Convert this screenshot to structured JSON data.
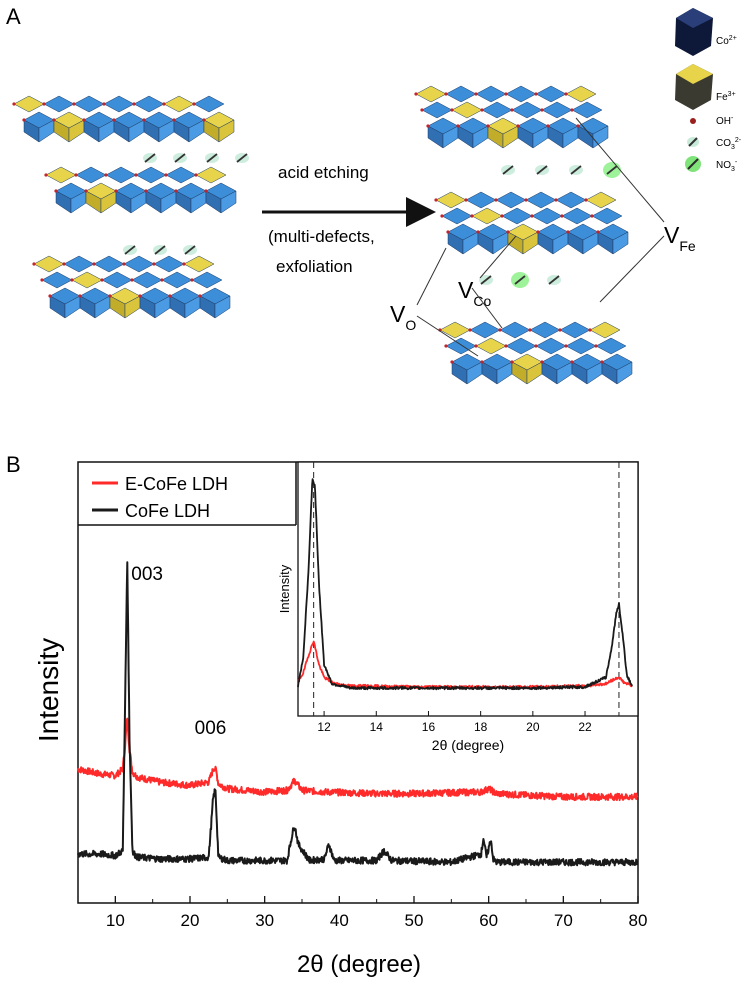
{
  "panels": {
    "a_label": "A",
    "b_label": "B"
  },
  "schematic": {
    "arrow_line1": "acid etching",
    "arrow_line2": "(multi-defects,",
    "arrow_line3": "exfoliation",
    "vacancy_o": {
      "main": "V",
      "sub": "O"
    },
    "vacancy_co": {
      "main": "V",
      "sub": "Co"
    },
    "vacancy_fe": {
      "main": "V",
      "sub": "Fe"
    },
    "legend": [
      {
        "symbol": "co-octahedron",
        "label": "Co",
        "sup": "2+",
        "color": "#101a3c"
      },
      {
        "symbol": "fe-octahedron",
        "label": "Fe",
        "sup": "3+",
        "color": "#3c3c32"
      },
      {
        "symbol": "hydroxyl-dot",
        "label": "OH",
        "sup": "-",
        "color": "#9a1f1f"
      },
      {
        "symbol": "carbonate-ion",
        "label": "CO",
        "sub": "3",
        "sup": "2-",
        "color": "#b7e2d4"
      },
      {
        "symbol": "nitrate-ion",
        "label": "NO",
        "sub": "3",
        "sup": "-",
        "color": "#7fe37a"
      }
    ],
    "colors": {
      "co_face": "#3d8ed8",
      "fe_face": "#e7d44a",
      "oxygen": "#c0262b",
      "edge": "#1c3a66"
    }
  },
  "chart_data": {
    "type": "line",
    "xlabel": "2θ (degree)",
    "ylabel": "Intensity",
    "xlim": [
      5,
      80
    ],
    "xticks": [
      10,
      20,
      30,
      40,
      50,
      60,
      70,
      80
    ],
    "y_axis_values_shown": false,
    "grid": false,
    "legend_position": "top-left",
    "series": [
      {
        "name": "E-CoFe LDH",
        "color": "#ff2a2a",
        "x": [
          5,
          8,
          10,
          11,
          11.3,
          11.6,
          11.9,
          12.3,
          13,
          16,
          20,
          22.5,
          23.2,
          23.5,
          23.8,
          25,
          30,
          33,
          34,
          35,
          38,
          45,
          50,
          59,
          60,
          61,
          65,
          70,
          75,
          80
        ],
        "y": [
          0.26,
          0.245,
          0.24,
          0.26,
          0.33,
          0.42,
          0.32,
          0.25,
          0.235,
          0.22,
          0.21,
          0.22,
          0.265,
          0.255,
          0.215,
          0.2,
          0.19,
          0.195,
          0.225,
          0.195,
          0.19,
          0.185,
          0.185,
          0.19,
          0.2,
          0.185,
          0.18,
          0.175,
          0.175,
          0.175
        ]
      },
      {
        "name": "CoFe LDH",
        "color": "#1a1a1a",
        "x": [
          5,
          8,
          10,
          11,
          11.3,
          11.6,
          11.9,
          12.3,
          13,
          16,
          20,
          22.5,
          23.1,
          23.4,
          23.8,
          25,
          30,
          33,
          33.6,
          34,
          34.5,
          36,
          38,
          38.6,
          39.3,
          45,
          46,
          47,
          55,
          59,
          59.3,
          59.7,
          60.3,
          60.6,
          61,
          65,
          70,
          75,
          80
        ],
        "y": [
          0.0,
          0.0,
          -0.005,
          0.01,
          0.45,
          0.9,
          0.35,
          0.005,
          -0.01,
          -0.015,
          -0.015,
          -0.01,
          0.17,
          0.2,
          -0.01,
          -0.02,
          -0.02,
          -0.02,
          0.05,
          0.09,
          0.03,
          -0.02,
          -0.015,
          0.03,
          -0.02,
          -0.02,
          0.01,
          -0.02,
          -0.025,
          0.0,
          0.05,
          -0.01,
          0.045,
          -0.015,
          -0.025,
          -0.025,
          -0.025,
          -0.025,
          -0.025
        ]
      }
    ],
    "annotations": [
      {
        "text": "003",
        "x": 11.6
      },
      {
        "text": "006",
        "x": 23.3
      }
    ],
    "inset": {
      "xlabel": "2θ (degree)",
      "ylabel": "Intensity",
      "xlim": [
        11,
        23.8
      ],
      "xticks": [
        12,
        14,
        16,
        18,
        20,
        22
      ],
      "reference_lines_x": [
        11.6,
        23.3
      ],
      "series": [
        {
          "name": "E-CoFe LDH",
          "color": "#ff2a2a",
          "x": [
            11,
            11.2,
            11.4,
            11.6,
            11.8,
            12.0,
            12.4,
            13,
            16,
            20,
            22,
            22.8,
            23.1,
            23.3,
            23.5,
            23.8
          ],
          "y": [
            0.04,
            0.08,
            0.16,
            0.23,
            0.12,
            0.06,
            0.03,
            0.02,
            0.015,
            0.015,
            0.02,
            0.03,
            0.05,
            0.06,
            0.035,
            0.02
          ]
        },
        {
          "name": "CoFe LDH",
          "color": "#1a1a1a",
          "x": [
            11,
            11.2,
            11.4,
            11.55,
            11.65,
            11.8,
            12.0,
            12.3,
            13,
            16,
            20,
            22,
            22.8,
            23.0,
            23.2,
            23.3,
            23.45,
            23.6,
            23.8
          ],
          "y": [
            0.02,
            0.15,
            0.55,
            0.98,
            0.95,
            0.5,
            0.12,
            0.03,
            0.01,
            0.01,
            0.01,
            0.015,
            0.06,
            0.18,
            0.36,
            0.4,
            0.25,
            0.07,
            0.02
          ]
        }
      ]
    }
  }
}
